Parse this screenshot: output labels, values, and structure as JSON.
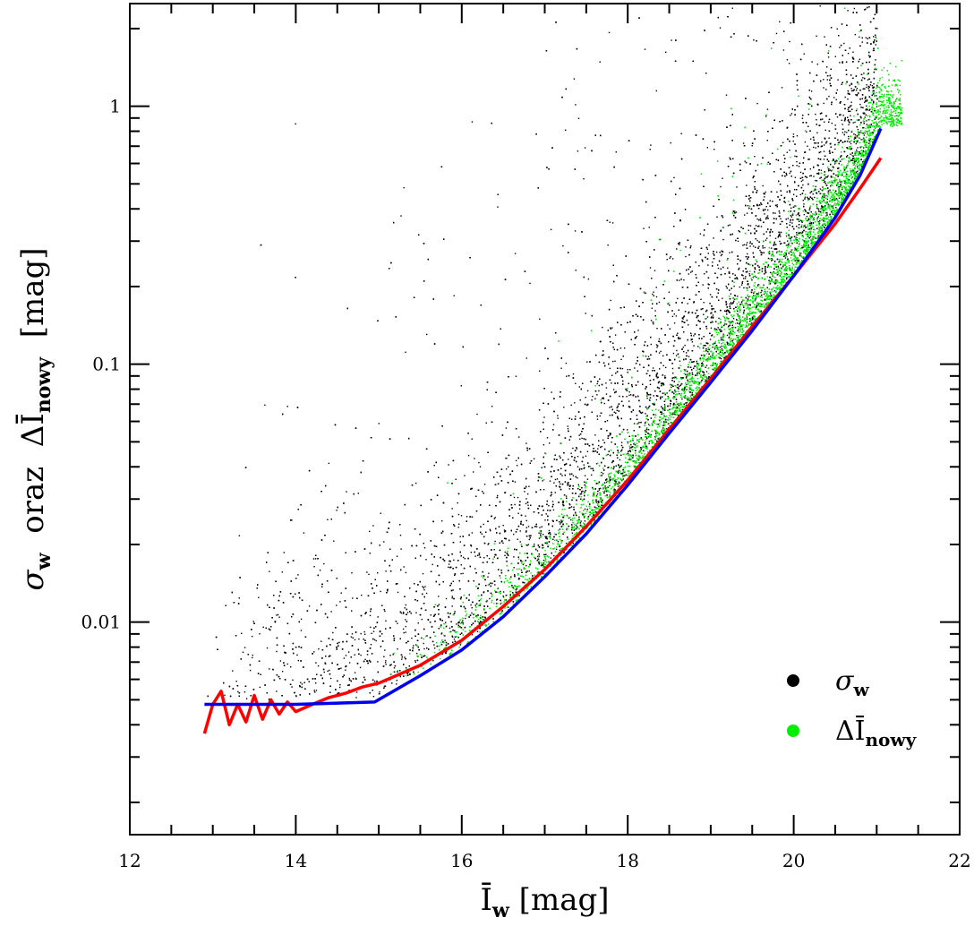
{
  "chart_data": {
    "type": "scatter",
    "x_axis": {
      "label": "Ī",
      "label_sub": "w",
      "label_rest": " [mag]",
      "range": [
        12,
        22
      ],
      "scale": "linear",
      "major_ticks": [
        12,
        14,
        16,
        18,
        20,
        22
      ],
      "tick_labels": [
        "12",
        "14",
        "16",
        "18",
        "20",
        "22"
      ],
      "minor_step": 0.5
    },
    "y_axis": {
      "label_sigma": "σ",
      "label_sigma_sub": "w",
      "label_mid": "oraz",
      "label_delta": "ΔĪ",
      "label_delta_sub": "nowy",
      "label_rest": "[mag]",
      "range": [
        0.0015,
        2.5
      ],
      "scale": "log",
      "major_ticks": [
        0.01,
        0.1,
        1
      ],
      "tick_labels": [
        "0.01",
        "0.1",
        "1"
      ]
    },
    "legend": {
      "placement": "bottom-right",
      "entries": [
        {
          "symbol": "σ",
          "sub": "w",
          "color": "#000000"
        },
        {
          "symbol": "ΔĪ",
          "sub": "nowy",
          "color": "#00ee00"
        }
      ]
    },
    "series": [
      {
        "kind": "scatter",
        "color": "#000000",
        "x_range": [
          12.9,
          21.0
        ],
        "trend": "log-increasing, scattered above the model curve"
      },
      {
        "kind": "scatter",
        "color": "#00ee00",
        "x_range": [
          15.0,
          21.3
        ],
        "trend": "narrow band just above the model curve"
      },
      {
        "kind": "line",
        "color": "#ff0000",
        "x": [
          12.9,
          13.0,
          13.1,
          13.2,
          13.3,
          13.4,
          13.5,
          13.6,
          13.7,
          13.8,
          13.9,
          14.0,
          14.2,
          14.4,
          14.6,
          14.8,
          15.0,
          15.5,
          16.0,
          16.5,
          17.0,
          17.5,
          18.0,
          18.5,
          19.0,
          19.5,
          20.0,
          20.5,
          20.8,
          21.05
        ],
        "y": [
          0.0037,
          0.0048,
          0.0054,
          0.004,
          0.0048,
          0.0041,
          0.0052,
          0.0042,
          0.005,
          0.0044,
          0.0049,
          0.0045,
          0.0048,
          0.0051,
          0.0053,
          0.0056,
          0.0058,
          0.0068,
          0.0085,
          0.0115,
          0.016,
          0.0235,
          0.0355,
          0.056,
          0.088,
          0.14,
          0.22,
          0.35,
          0.48,
          0.63
        ]
      },
      {
        "kind": "line",
        "color": "#0000ee",
        "x": [
          12.9,
          14.0,
          14.95,
          15.5,
          16.0,
          16.5,
          17.0,
          17.5,
          18.0,
          18.5,
          19.0,
          19.5,
          20.0,
          20.5,
          20.8,
          21.05
        ],
        "y": [
          0.0048,
          0.0048,
          0.0049,
          0.0062,
          0.0078,
          0.0105,
          0.015,
          0.022,
          0.034,
          0.054,
          0.085,
          0.135,
          0.22,
          0.37,
          0.54,
          0.82
        ]
      }
    ]
  }
}
